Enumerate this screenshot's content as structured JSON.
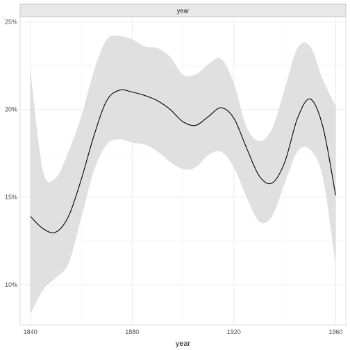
{
  "chart_data": {
    "type": "line",
    "facet_label": "year",
    "xlabel": "year",
    "ylabel": "",
    "xlim": [
      1836,
      1964
    ],
    "ylim": [
      0.077,
      0.253
    ],
    "x_ticks": [
      1840,
      1880,
      1920,
      1960
    ],
    "x_tick_labels": [
      "1840",
      "1880",
      "1920",
      "1960"
    ],
    "y_ticks": [
      0.1,
      0.15,
      0.2,
      0.25
    ],
    "y_tick_labels": [
      "10%",
      "15%",
      "20%",
      "25%"
    ],
    "grid": true,
    "legend": "none",
    "colors": {
      "line": "#000000",
      "ribbon": "#e0e0e0",
      "grid": "#ebebeb",
      "strip": "#e8e8e8"
    },
    "series": [
      {
        "x": [
          1840,
          1845,
          1850,
          1855,
          1860,
          1865,
          1870,
          1875,
          1880,
          1885,
          1890,
          1895,
          1900,
          1905,
          1910,
          1915,
          1920,
          1925,
          1930,
          1935,
          1940,
          1945,
          1950,
          1955,
          1960
        ],
        "y": [
          0.139,
          0.132,
          0.13,
          0.139,
          0.16,
          0.185,
          0.205,
          0.211,
          0.21,
          0.208,
          0.205,
          0.2,
          0.193,
          0.191,
          0.196,
          0.201,
          0.195,
          0.178,
          0.162,
          0.158,
          0.17,
          0.195,
          0.206,
          0.19,
          0.151
        ],
        "ymin": [
          0.083,
          0.097,
          0.104,
          0.112,
          0.138,
          0.165,
          0.18,
          0.183,
          0.181,
          0.18,
          0.176,
          0.17,
          0.166,
          0.167,
          0.174,
          0.176,
          0.167,
          0.15,
          0.136,
          0.139,
          0.158,
          0.176,
          0.177,
          0.161,
          0.111
        ],
        "ymax": [
          0.223,
          0.165,
          0.161,
          0.176,
          0.196,
          0.222,
          0.24,
          0.242,
          0.24,
          0.236,
          0.235,
          0.23,
          0.22,
          0.22,
          0.226,
          0.229,
          0.215,
          0.19,
          0.182,
          0.189,
          0.212,
          0.235,
          0.236,
          0.217,
          0.202
        ]
      }
    ]
  }
}
